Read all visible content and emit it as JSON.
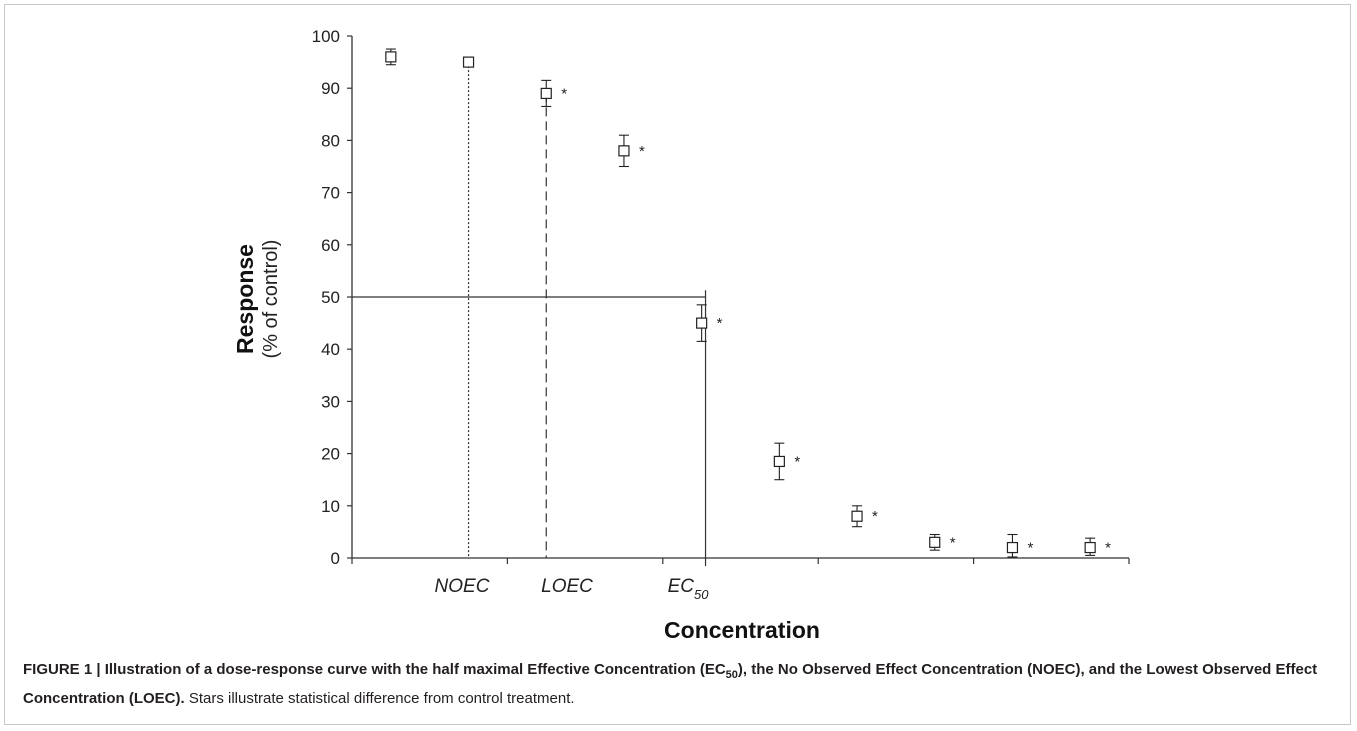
{
  "chart_data": {
    "type": "scatter",
    "ylabel": "Response",
    "ylabel_sub": "(% of control)",
    "xlabel": "Concentration",
    "ylim": [
      0,
      100
    ],
    "yticks": [
      0,
      10,
      20,
      30,
      40,
      50,
      60,
      70,
      80,
      90,
      100
    ],
    "x_categories": [
      "NOEC",
      "LOEC",
      "EC",
      "50"
    ],
    "points": [
      {
        "y": 96,
        "err_low": 1.5,
        "err_high": 1.5,
        "significant": false
      },
      {
        "y": 95,
        "err_low": 0,
        "err_high": 0,
        "significant": false
      },
      {
        "y": 89,
        "err_low": 2.5,
        "err_high": 2.5,
        "significant": true
      },
      {
        "y": 78,
        "err_low": 3,
        "err_high": 3,
        "significant": true
      },
      {
        "y": 45,
        "err_low": 3.5,
        "err_high": 3.5,
        "significant": true
      },
      {
        "y": 18.5,
        "err_low": 3.5,
        "err_high": 3.5,
        "significant": true
      },
      {
        "y": 8,
        "err_low": 2,
        "err_high": 2,
        "significant": true
      },
      {
        "y": 3,
        "err_low": 1.5,
        "err_high": 1.5,
        "significant": true
      },
      {
        "y": 2,
        "err_low": 1.8,
        "err_high": 2.5,
        "significant": true
      },
      {
        "y": 2,
        "err_low": 1.5,
        "err_high": 1.8,
        "significant": true
      }
    ],
    "significance_marker": "*",
    "reference_lines": [
      {
        "name": "NOEC",
        "style": "dotted",
        "at_point": 2
      },
      {
        "name": "LOEC",
        "style": "dashed",
        "at_point": 3
      },
      {
        "name": "EC50",
        "style": "solid",
        "y": 50
      }
    ]
  },
  "caption": {
    "bold": "FIGURE 1 | Illustration of a dose-response curve with the half maximal Effective Concentration (EC",
    "bold_sub": "50",
    "bold_rest": "), the No Observed Effect Concentration (NOEC), and the Lowest Observed Effect Concentration (LOEC).",
    "normal": " Stars illustrate statistical difference from control treatment."
  }
}
